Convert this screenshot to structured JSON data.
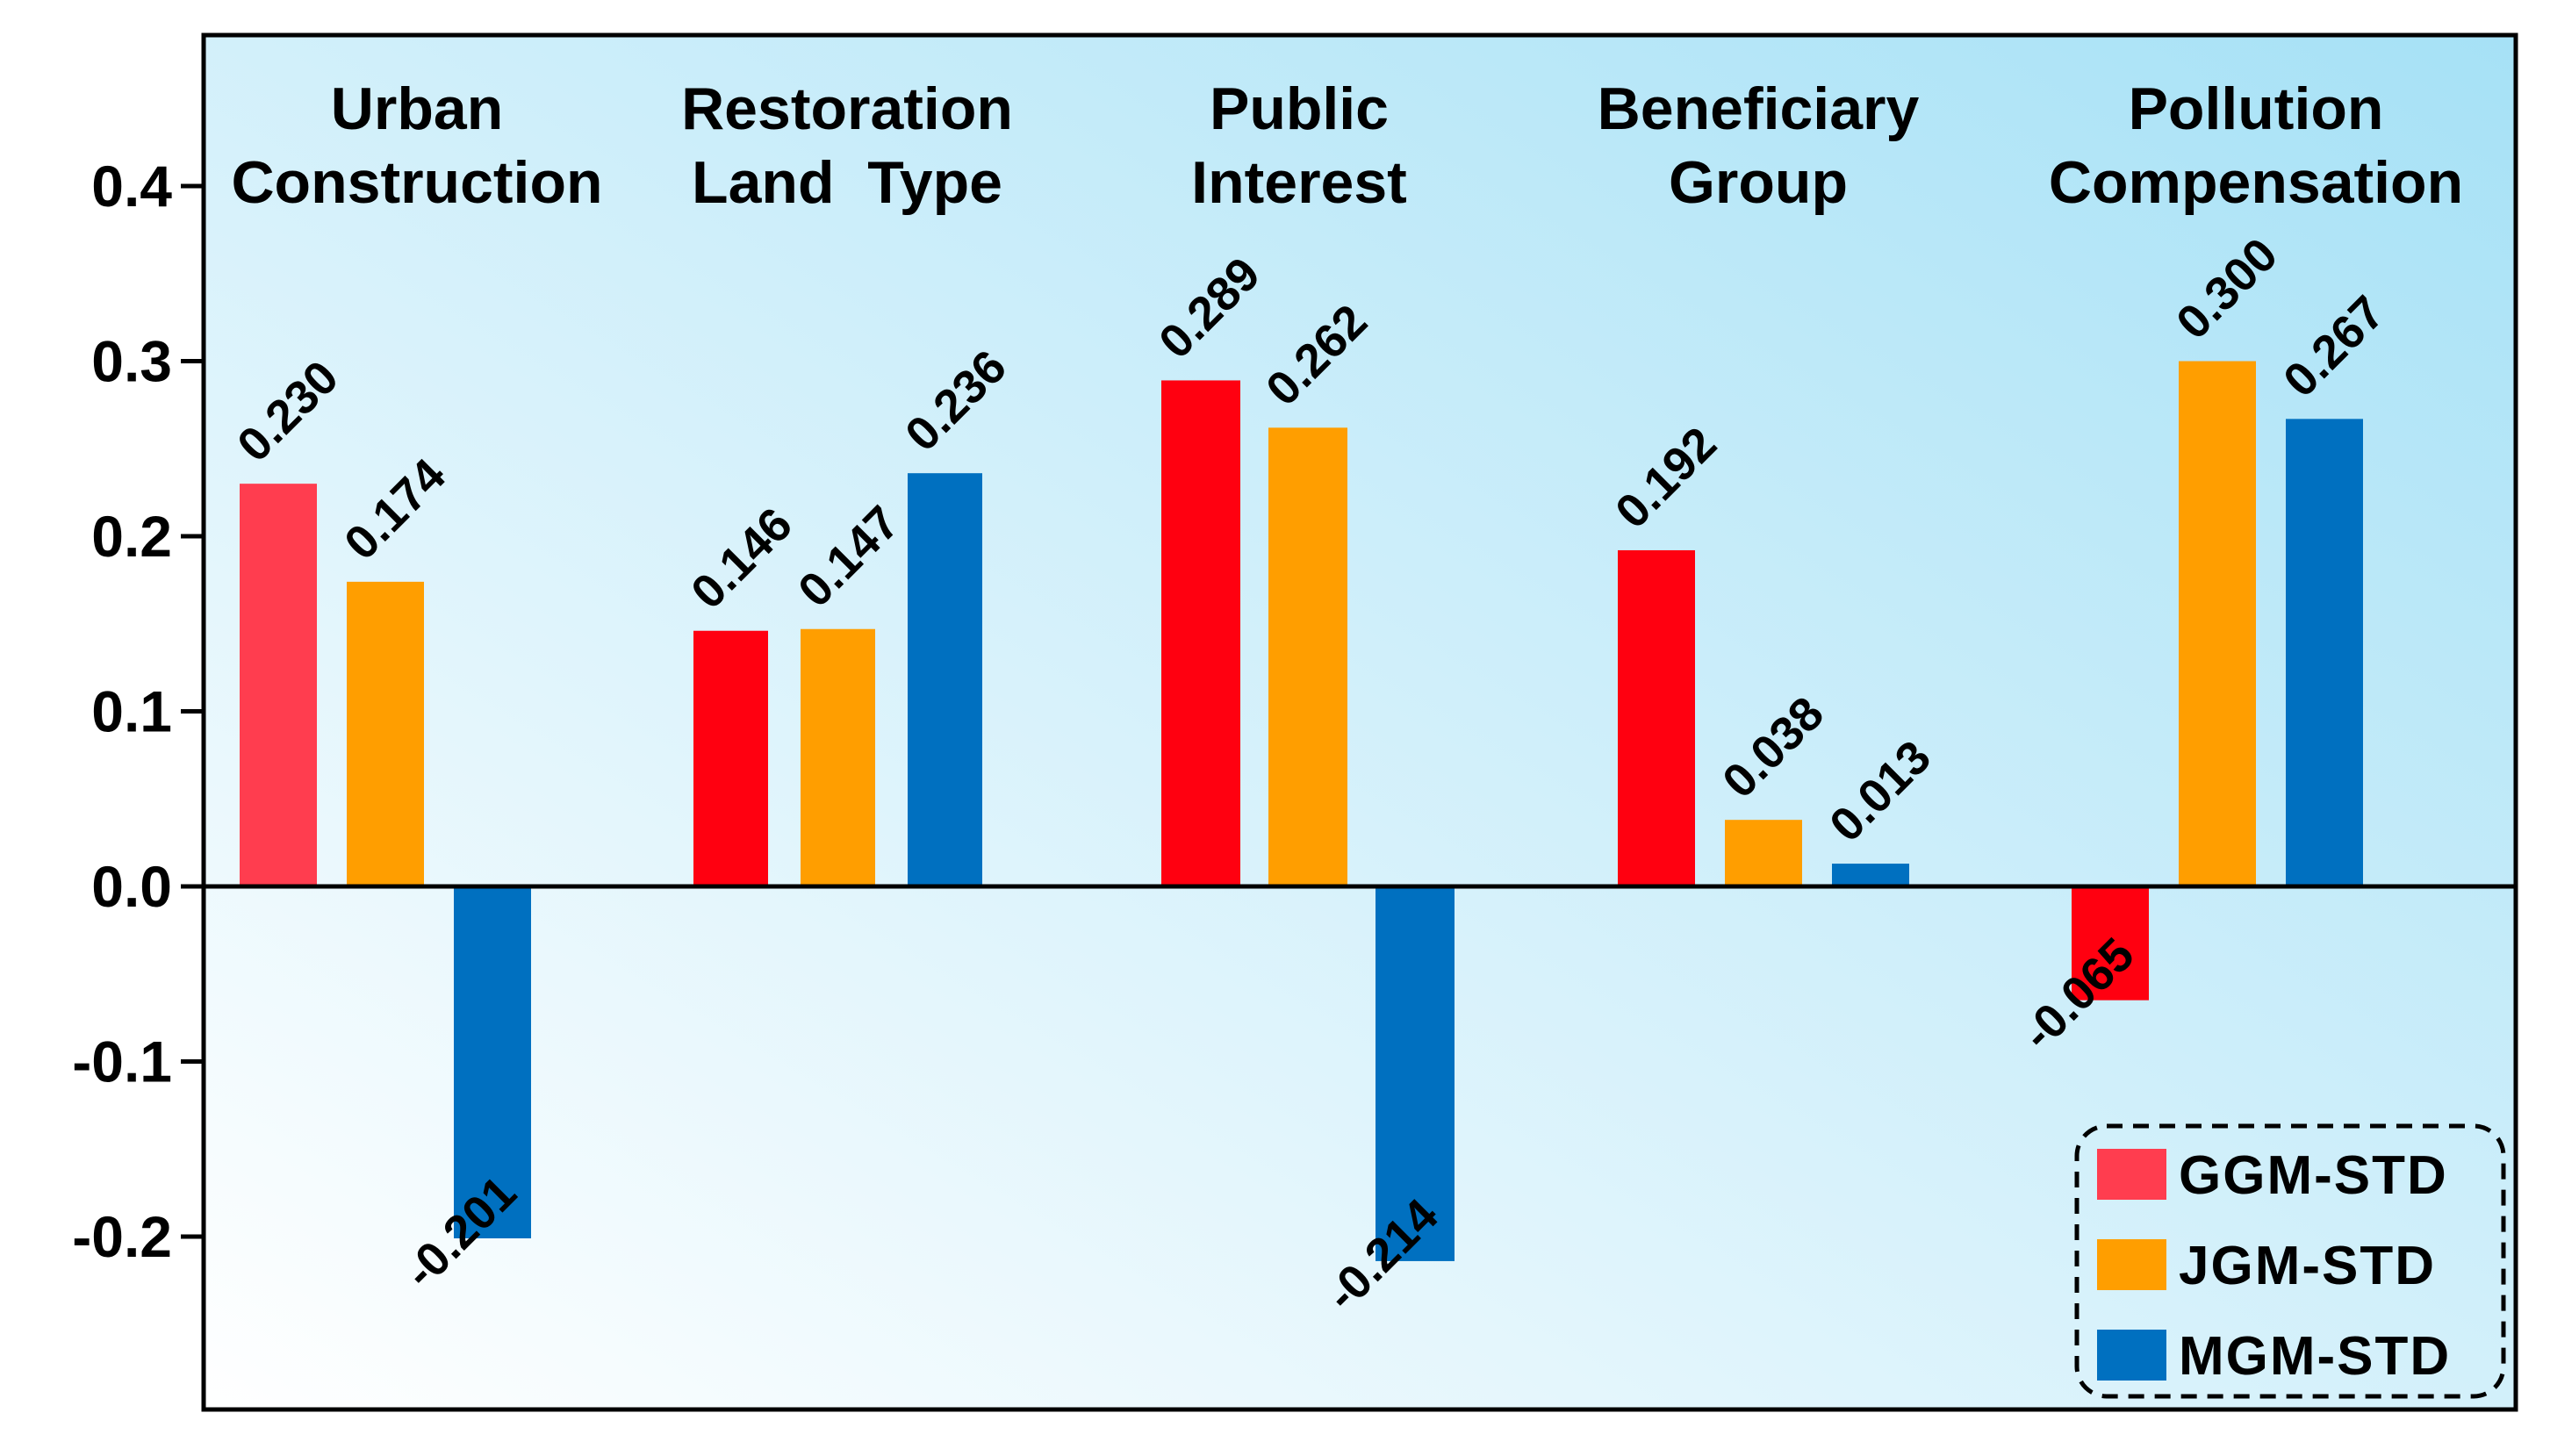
{
  "chart_data": {
    "type": "bar",
    "categories": [
      [
        "Urban",
        "Construction"
      ],
      [
        "Restoration",
        "Land  Type"
      ],
      [
        "Public",
        "Interest"
      ],
      [
        "Beneficiary",
        "Group"
      ],
      [
        "Pollution",
        "Compensation"
      ]
    ],
    "series": [
      {
        "name": "GGM-STD",
        "values": [
          0.23,
          0.146,
          0.289,
          0.192,
          -0.065
        ],
        "labels": [
          "0.230",
          "0.146",
          "0.289",
          "0.192",
          "-0.065"
        ],
        "colors": [
          "#ff3d4f",
          "#ff0010",
          "#ff0010",
          "#ff0010",
          "#ff0010"
        ]
      },
      {
        "name": "JGM-STD",
        "values": [
          0.174,
          0.147,
          0.262,
          0.038,
          0.3
        ],
        "labels": [
          "0.174",
          "0.147",
          "0.262",
          "0.038",
          "0.300"
        ],
        "colors": [
          "#ff9e00",
          "#ff9e00",
          "#ff9e00",
          "#ff9e00",
          "#ff9e00"
        ]
      },
      {
        "name": "MGM-STD",
        "values": [
          -0.201,
          0.236,
          -0.214,
          0.013,
          0.267
        ],
        "labels": [
          "-0.201",
          "0.236",
          "-0.214",
          "0.013",
          "0.267"
        ],
        "colors": [
          "#0070c0",
          "#0070c0",
          "#0070c0",
          "#0070c0",
          "#0070c0"
        ]
      }
    ],
    "ylim": [
      -0.305,
      0.49
    ],
    "yticks": [
      0.4,
      0.3,
      0.2,
      0.1,
      0.0,
      -0.1,
      -0.2
    ],
    "ytick_labels": [
      "0.4",
      "0.3",
      "0.2",
      "0.1",
      "0.0",
      "-0.1",
      "-0.2"
    ],
    "legend": {
      "position": "bottom-right",
      "entries": [
        {
          "label": "GGM-STD",
          "color": "#ff3d4f"
        },
        {
          "label": "JGM-STD",
          "color": "#ff9e00"
        },
        {
          "label": "MGM-STD",
          "color": "#0070c0"
        }
      ]
    },
    "background": {
      "from": "#ffffff",
      "to": "#a6e1f6"
    },
    "xlabel": "",
    "ylabel": ""
  }
}
